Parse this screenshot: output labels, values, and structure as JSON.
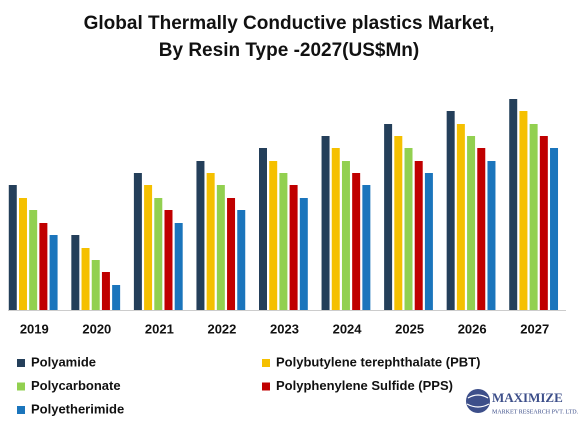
{
  "chart_data": {
    "type": "bar",
    "title": [
      "Global Thermally Conductive plastics Market,",
      "By Resin Type -2027(US$Mn)"
    ],
    "categories": [
      "2019",
      "2020",
      "2021",
      "2022",
      "2023",
      "2024",
      "2025",
      "2026",
      "2027"
    ],
    "series": [
      {
        "name": "Polyamide",
        "color": "#243f5a",
        "values": [
          125,
          75,
          137,
          149,
          162,
          174,
          186,
          199,
          211
        ]
      },
      {
        "name": "Polybutylene terephthalate (PBT)",
        "color": "#f5c000",
        "values": [
          112,
          62,
          125,
          137,
          149,
          162,
          174,
          186,
          199
        ]
      },
      {
        "name": "Polycarbonate",
        "color": "#92d050",
        "values": [
          100,
          50,
          112,
          125,
          137,
          149,
          162,
          174,
          186
        ]
      },
      {
        "name": "Polyphenylene Sulfide (PPS)",
        "color": "#c00000",
        "values": [
          87,
          38,
          100,
          112,
          125,
          137,
          149,
          162,
          174
        ]
      },
      {
        "name": "Polyetherimide",
        "color": "#1b75bc",
        "values": [
          75,
          25,
          87,
          100,
          112,
          125,
          137,
          149,
          162
        ]
      }
    ],
    "ylim": [
      0,
      220
    ],
    "grid": false
  },
  "logo": {
    "name": "MAXIMIZE",
    "tagline": "MARKET RESEARCH PVT. LTD."
  }
}
